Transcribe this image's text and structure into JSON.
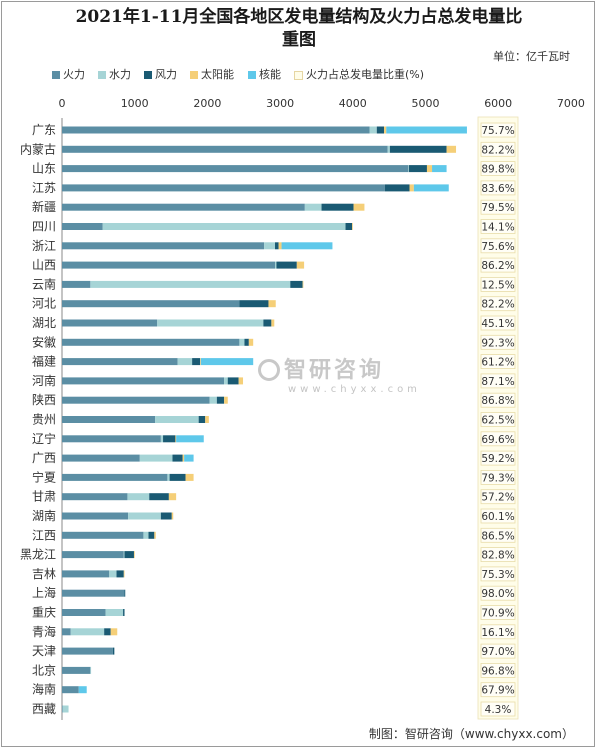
{
  "title": "2021年1-11月全国各地区发电量结构及火力占总发电量比重图",
  "title_lines": [
    "2021年1-11月全国各地区发电量结构及火力占总发电量比",
    "重图"
  ],
  "unit": "单位：亿千瓦时",
  "footer": "制图：智研咨询（www.chyxx.com）",
  "watermark": {
    "name": "智研咨询",
    "url": "www.chyxx.com"
  },
  "legend": [
    {
      "name": "火力",
      "color": "#5b8ea4"
    },
    {
      "name": "水力",
      "color": "#a6d4d6"
    },
    {
      "name": "风力",
      "color": "#1a5a73"
    },
    {
      "name": "太阳能",
      "color": "#f5cf78"
    },
    {
      "name": "核能",
      "color": "#5ec8ea"
    },
    {
      "name": "火力占总发电量比重(%)",
      "color": "#fffde9"
    }
  ],
  "chart_data": {
    "type": "bar",
    "orientation": "horizontal",
    "stacked": true,
    "xlim": [
      0,
      7000
    ],
    "xticks": [
      0,
      1000,
      2000,
      3000,
      4000,
      5000,
      6000,
      7000
    ],
    "grid": false,
    "legend_position": "top",
    "categories": [
      "广东",
      "内蒙古",
      "山东",
      "江苏",
      "新疆",
      "四川",
      "浙江",
      "山西",
      "云南",
      "河北",
      "湖北",
      "安徽",
      "福建",
      "河南",
      "陕西",
      "贵州",
      "辽宁",
      "广西",
      "宁夏",
      "甘肃",
      "湖南",
      "江西",
      "黑龙江",
      "吉林",
      "上海",
      "重庆",
      "青海",
      "天津",
      "北京",
      "海南",
      "西藏"
    ],
    "series": [
      {
        "name": "火力",
        "color": "#5b8ea4",
        "values": [
          4230,
          4480,
          4760,
          4440,
          3340,
          560,
          2780,
          2930,
          390,
          2440,
          1310,
          2440,
          1590,
          2230,
          2030,
          1280,
          1360,
          1070,
          1450,
          900,
          910,
          1120,
          850,
          650,
          860,
          600,
          120,
          700,
          390,
          230,
          10
        ]
      },
      {
        "name": "水力",
        "color": "#a6d4d6",
        "values": [
          100,
          30,
          10,
          0,
          230,
          3340,
          150,
          20,
          2750,
          0,
          1460,
          70,
          200,
          50,
          100,
          600,
          30,
          450,
          30,
          300,
          450,
          70,
          10,
          100,
          0,
          240,
          460,
          0,
          10,
          0,
          80
        ]
      },
      {
        "name": "风力",
        "color": "#1a5a73",
        "values": [
          100,
          780,
          250,
          340,
          440,
          90,
          50,
          280,
          170,
          400,
          110,
          60,
          110,
          150,
          100,
          90,
          170,
          140,
          220,
          270,
          150,
          80,
          130,
          100,
          10,
          20,
          90,
          20,
          0,
          0,
          0
        ]
      },
      {
        "name": "太阳能",
        "color": "#f5cf78",
        "values": [
          30,
          130,
          70,
          60,
          150,
          10,
          40,
          100,
          10,
          100,
          40,
          60,
          10,
          60,
          50,
          50,
          10,
          20,
          110,
          100,
          20,
          20,
          10,
          10,
          0,
          0,
          90,
          0,
          0,
          0,
          0
        ]
      },
      {
        "name": "核能",
        "color": "#5ec8ea",
        "values": [
          1110,
          0,
          200,
          480,
          0,
          0,
          700,
          0,
          0,
          0,
          0,
          0,
          720,
          0,
          0,
          0,
          380,
          130,
          0,
          0,
          0,
          0,
          0,
          0,
          0,
          0,
          0,
          0,
          0,
          110,
          0
        ]
      }
    ],
    "ratio_series": {
      "name": "火力占总发电量比重(%)",
      "labels": [
        "75.7%",
        "82.2%",
        "89.8%",
        "83.6%",
        "79.5%",
        "14.1%",
        "75.6%",
        "86.2%",
        "12.5%",
        "82.2%",
        "45.1%",
        "92.3%",
        "61.2%",
        "87.1%",
        "86.8%",
        "62.5%",
        "69.6%",
        "59.2%",
        "79.3%",
        "57.2%",
        "60.1%",
        "86.5%",
        "82.8%",
        "75.3%",
        "98.0%",
        "70.9%",
        "16.1%",
        "97.0%",
        "96.8%",
        "67.9%",
        "4.3%"
      ]
    }
  }
}
